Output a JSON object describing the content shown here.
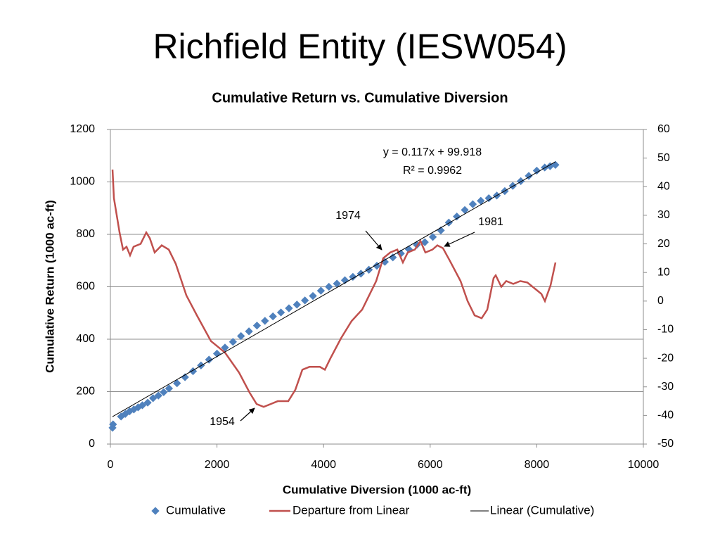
{
  "slide_title": "Richfield Entity (IESW054)",
  "chart_data": {
    "type": "scatter",
    "title": "Cumulative Return vs. Cumulative Diversion",
    "x_label": "Cumulative Diversion (1000 ac-ft)",
    "y_label": "Cumulative Return (1000 ac-ft)",
    "xlim": [
      0,
      10000
    ],
    "xticks": [
      0,
      2000,
      4000,
      6000,
      8000,
      10000
    ],
    "ylim": [
      0,
      1200
    ],
    "yticks": [
      0,
      200,
      400,
      600,
      800,
      1000,
      1200
    ],
    "y2lim": [
      -50,
      60
    ],
    "y2ticks": [
      -50,
      -40,
      -30,
      -20,
      -10,
      0,
      10,
      20,
      30,
      40,
      50,
      60
    ],
    "grid": true,
    "series": [
      {
        "name": "Cumulative",
        "type": "scatter",
        "color": "#4f81bd",
        "x": [
          40,
          50,
          200,
          280,
          360,
          440,
          520,
          600,
          700,
          800,
          900,
          1000,
          1100,
          1250,
          1400,
          1550,
          1700,
          1850,
          2000,
          2150,
          2300,
          2450,
          2600,
          2750,
          2900,
          3050,
          3200,
          3350,
          3500,
          3650,
          3800,
          3950,
          4100,
          4250,
          4400,
          4550,
          4700,
          4850,
          5000,
          5150,
          5300,
          5450,
          5600,
          5750,
          5900,
          6050,
          6200,
          6350,
          6500,
          6650,
          6800,
          6950,
          7100,
          7250,
          7400,
          7550,
          7700,
          7850,
          8000,
          8150,
          8250,
          8350
        ],
        "values": [
          62,
          75,
          105,
          115,
          125,
          132,
          140,
          148,
          158,
          175,
          185,
          198,
          212,
          232,
          255,
          278,
          300,
          322,
          345,
          368,
          390,
          412,
          430,
          452,
          470,
          487,
          502,
          518,
          532,
          548,
          565,
          585,
          600,
          612,
          625,
          638,
          650,
          665,
          680,
          695,
          712,
          727,
          743,
          760,
          770,
          790,
          815,
          845,
          868,
          893,
          915,
          928,
          938,
          948,
          965,
          985,
          1003,
          1023,
          1043,
          1055,
          1060,
          1065
        ]
      },
      {
        "name": "Departure from Linear",
        "type": "line",
        "axis": "y2",
        "color": "#c0504d",
        "x": [
          40,
          66,
          172,
          237,
          303,
          369,
          435,
          567,
          673,
          739,
          831,
          963,
          1095,
          1227,
          1425,
          1623,
          1887,
          2150,
          2414,
          2612,
          2744,
          2876,
          3008,
          3140,
          3338,
          3470,
          3602,
          3734,
          3931,
          4024,
          4129,
          4327,
          4525,
          4723,
          4855,
          4987,
          5119,
          5251,
          5383,
          5488,
          5580,
          5712,
          5818,
          5910,
          6042,
          6135,
          6240,
          6372,
          6570,
          6702,
          6834,
          6966,
          7071,
          7190,
          7230,
          7335,
          7427,
          7559,
          7691,
          7823,
          7955,
          8087,
          8153,
          8259,
          8351
        ],
        "values": [
          46,
          36,
          24,
          18,
          19,
          16,
          19,
          20,
          24,
          22,
          17,
          19.5,
          18,
          13,
          2,
          -5,
          -14,
          -18,
          -25,
          -32,
          -36,
          -37,
          -36,
          -35,
          -35,
          -31,
          -24,
          -23,
          -23,
          -24,
          -20,
          -13,
          -7,
          -3,
          2,
          7,
          15,
          17,
          18,
          13.5,
          17,
          18,
          21,
          17,
          18,
          19.5,
          18.5,
          14,
          7,
          0,
          -5,
          -6,
          -3,
          8,
          9,
          5,
          7,
          6,
          7,
          6.5,
          4.5,
          2.5,
          0,
          5.5,
          13.5
        ]
      },
      {
        "name": "Linear (Cumulative)",
        "type": "line",
        "color": "#000000",
        "x": [
          40,
          8350
        ],
        "values": [
          104.6,
          1076.9
        ]
      }
    ],
    "trendline_label": [
      "y = 0.117x + 99.918",
      "R² = 0.9962"
    ],
    "annotations": [
      "1974",
      "1981",
      "1954"
    ]
  }
}
